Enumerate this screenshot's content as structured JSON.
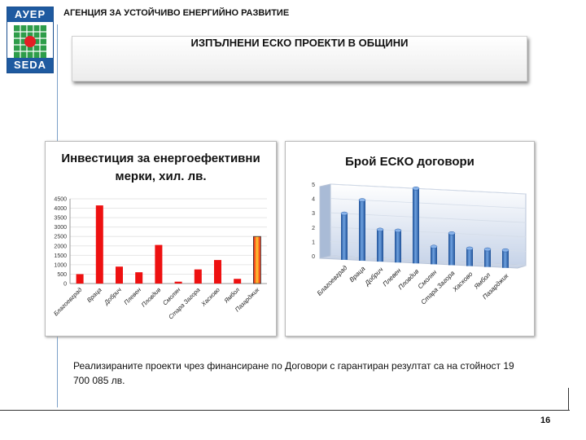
{
  "logo": {
    "top": "АУЕР",
    "bottom": "SEDA"
  },
  "agency_name": "АГЕНЦИЯ ЗА УСТОЙЧИВО ЕНЕРГИЙНО РАЗВИТИЕ",
  "slide_title": "ИЗПЪЛНЕНИ ЕСКО ПРОЕКТИ В ОБЩИНИ",
  "note": "Реализираните проекти  чрез финансиране по Договори с гарантиран резултат са на стойност 19 700 085 лв.",
  "page_number": "16",
  "chart_data": [
    {
      "type": "bar",
      "title_lines": [
        "Инвестиция за енергоефективни",
        "мерки, хил. лв."
      ],
      "categories": [
        "Благоевград",
        "Враца",
        "Добрич",
        "Плевен",
        "Пловдив",
        "Смолян",
        "Стара Загора",
        "Хасково",
        "Ямбол",
        "Пазарджик"
      ],
      "values": [
        500,
        4150,
        900,
        600,
        2050,
        100,
        750,
        1250,
        250,
        2500
      ],
      "yticks": [
        0,
        500,
        1000,
        1500,
        2000,
        2500,
        3000,
        3500,
        4000,
        4500
      ],
      "ylim": [
        0,
        4500
      ],
      "colors": {
        "bar": "#ee1111",
        "highlight_core": "#ffcc33"
      }
    },
    {
      "type": "bar",
      "title": "Брой ЕСКО договори",
      "categories": [
        "Благоевград",
        "Враца",
        "Добрич",
        "Плевен",
        "Пловдив",
        "Смолян",
        "Стара Загора",
        "Хасково",
        "Ямбол",
        "Пазарджик"
      ],
      "values": [
        3,
        4,
        2,
        2,
        5,
        1,
        2,
        1,
        1,
        1
      ],
      "yticks": [
        0,
        1,
        2,
        3,
        4,
        5
      ],
      "ylim": [
        0,
        5
      ],
      "colors": {
        "bar": "#2f6fc0",
        "wall": "#c6d3e8"
      }
    }
  ]
}
